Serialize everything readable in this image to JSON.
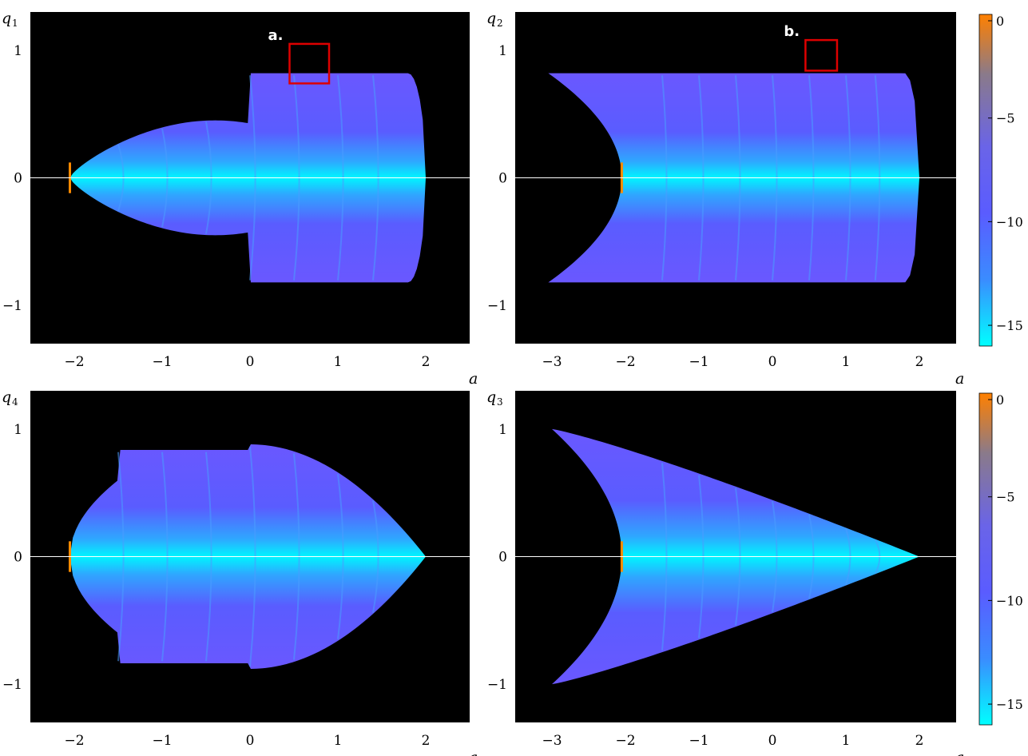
{
  "chart_data": [
    {
      "type": "heatmap",
      "id": "q1",
      "ylabel_main": "q",
      "ylabel_sub": "1",
      "xlabel": "a",
      "xlim": [
        -2.5,
        2.5
      ],
      "ylim": [
        -1.3,
        1.3
      ],
      "xticks": [
        -2,
        -1,
        0,
        1,
        2
      ],
      "yticks": [
        -1,
        0,
        1
      ],
      "xticklabels": [
        "−2",
        "−1",
        "0",
        "1",
        "2"
      ],
      "yticklabels": [
        "−1",
        "0",
        "1"
      ],
      "region": {
        "shape": "bulbs",
        "a_min": -2.05,
        "a_max": 2.0,
        "left_bulb": [
          -2.05,
          0.0
        ],
        "left_height": 0.45,
        "right_height": 0.82,
        "right_edge_round": true
      },
      "annotation": {
        "label": "a.",
        "box": {
          "a": [
            0.45,
            0.9
          ],
          "q": [
            0.74,
            1.05
          ]
        }
      }
    },
    {
      "type": "heatmap",
      "id": "q2",
      "ylabel_main": "q",
      "ylabel_sub": "2",
      "xlabel": "a",
      "xlim": [
        -3.5,
        2.5
      ],
      "ylim": [
        -1.3,
        1.3
      ],
      "xticks": [
        -3,
        -2,
        -1,
        0,
        1,
        2
      ],
      "yticks": [
        -1,
        0,
        1
      ],
      "xticklabels": [
        "−3",
        "−2",
        "−1",
        "0",
        "1",
        "2"
      ],
      "yticklabels": [
        "−1",
        "0",
        "1"
      ],
      "region": {
        "shape": "concave-left",
        "a_min": -3.1,
        "a_max": 2.0,
        "height": 0.82,
        "right_edge_round": true
      },
      "annotation": {
        "label": "b.",
        "box": {
          "a": [
            0.45,
            0.88
          ],
          "q": [
            0.84,
            1.08
          ]
        }
      }
    },
    {
      "type": "heatmap",
      "id": "q4",
      "ylabel_main": "q",
      "ylabel_sub": "4",
      "xlabel": "a",
      "xlim": [
        -2.5,
        2.5
      ],
      "ylim": [
        -1.3,
        1.3
      ],
      "xticks": [
        -2,
        -1,
        0,
        1,
        2
      ],
      "yticks": [
        -1,
        0,
        1
      ],
      "xticklabels": [
        "−2",
        "−1",
        "0",
        "1",
        "2"
      ],
      "yticklabels": [
        "−1",
        "0",
        "1"
      ],
      "region": {
        "shape": "lens",
        "a_min": -2.05,
        "a_max": 2.0,
        "height": 0.88
      }
    },
    {
      "type": "heatmap",
      "id": "q3",
      "ylabel_main": "q",
      "ylabel_sub": "3",
      "xlabel": "a",
      "xlim": [
        -3.5,
        2.5
      ],
      "ylim": [
        -1.3,
        1.3
      ],
      "xticks": [
        -3,
        -2,
        -1,
        0,
        1,
        2
      ],
      "yticks": [
        -1,
        0,
        1
      ],
      "xticklabels": [
        "−3",
        "−2",
        "−1",
        "0",
        "1",
        "2"
      ],
      "yticklabels": [
        "−1",
        "0",
        "1"
      ],
      "region": {
        "shape": "concave-lens",
        "a_min": -3.0,
        "a_max": 2.0,
        "height": 1.0
      }
    }
  ],
  "colorbar": {
    "range": [
      -16,
      0
    ],
    "ticks": [
      0,
      -5,
      -10,
      -15
    ],
    "ticklabels": [
      "0",
      "−5",
      "−10",
      "−15"
    ],
    "colors": {
      "top": "#ff8000",
      "upper": "#7a7a9a",
      "mid": "#5a5cff",
      "lower": "#3a8cff",
      "bottom": "#00ffff"
    }
  },
  "colors": {
    "background": "#000000",
    "body": "#5a5cff",
    "axis_glow": "#00f0ff",
    "edge": "#ff8a00",
    "annotation_box": "#dd0000",
    "axis_line": "#ffffff"
  }
}
